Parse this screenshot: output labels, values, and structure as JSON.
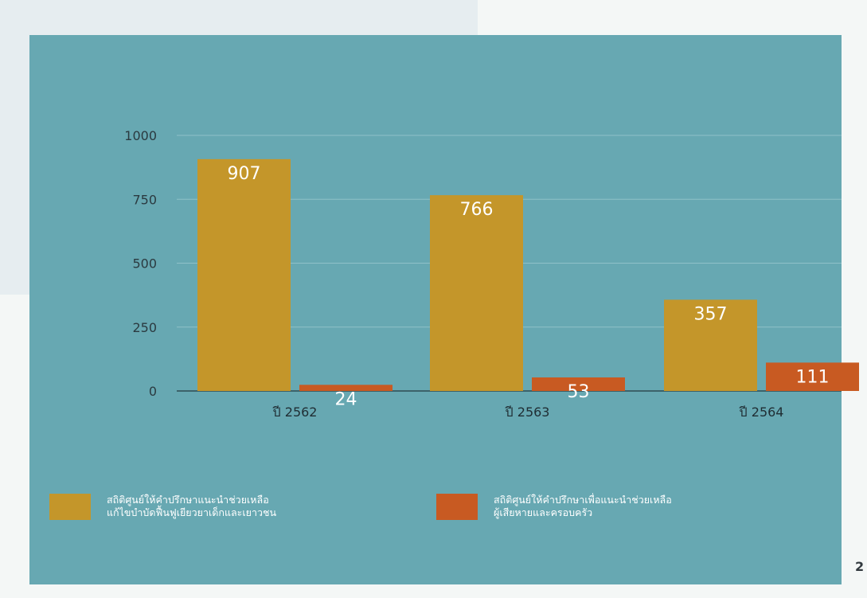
{
  "chart_data": {
    "type": "bar",
    "categories": [
      "ปี 2562",
      "ปี 2563",
      "ปี 2564"
    ],
    "series": [
      {
        "name": "สถิติศูนย์ให้คำปรึกษาแนะนำช่วยเหลือ\nแก้ไขบำบัดฟื้นฟูเยียวยาเด็กและเยาวชน",
        "values": [
          907,
          766,
          357
        ],
        "color": "#c4962a"
      },
      {
        "name": "สถิติศูนย์ให้คำปรึกษาเพื่อแนะนำช่วยเหลือ\nผู้เสียหายและครอบครัว",
        "values": [
          24,
          53,
          111
        ],
        "color": "#c85a22"
      }
    ],
    "yticks": [
      0,
      250,
      500,
      750,
      1000
    ],
    "ylim": [
      0,
      1000
    ],
    "grid": true,
    "legend_position": "bottom"
  },
  "colors": {
    "panel": "#67a8b2",
    "series_1": "#c4962a",
    "series_2": "#c85a22"
  },
  "corner_text": "2"
}
